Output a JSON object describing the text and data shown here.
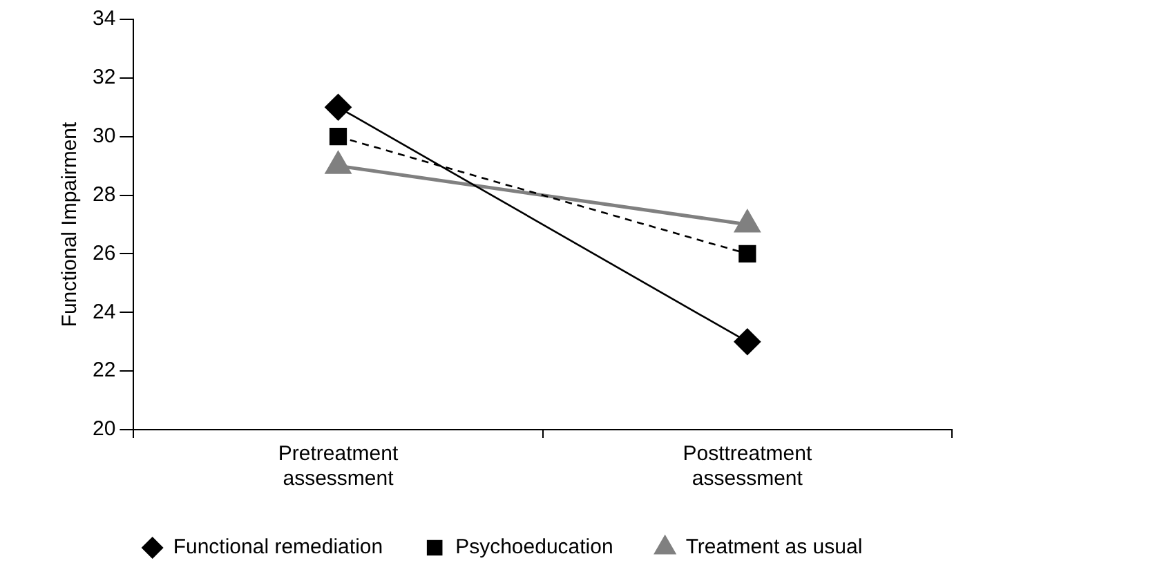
{
  "chart_data": {
    "type": "line",
    "ylabel": "Functional Impairment",
    "categories": [
      "Pretreatment assessment",
      "Posttreatment assessment"
    ],
    "series": [
      {
        "name": "Functional remediation",
        "color": "#000000",
        "values": [
          31,
          23
        ],
        "marker": "diamond",
        "line_style": "solid"
      },
      {
        "name": "Psychoeducation",
        "color": "#000000",
        "values": [
          30,
          26
        ],
        "marker": "square",
        "line_style": "dashed"
      },
      {
        "name": "Treatment as usual",
        "color": "#808080",
        "values": [
          29,
          27
        ],
        "marker": "triangle",
        "line_style": "solid"
      }
    ],
    "ylim": [
      20,
      34
    ],
    "yticks": [
      20,
      22,
      24,
      26,
      28,
      30,
      32,
      34
    ],
    "grid": false,
    "legend": "bottom"
  }
}
